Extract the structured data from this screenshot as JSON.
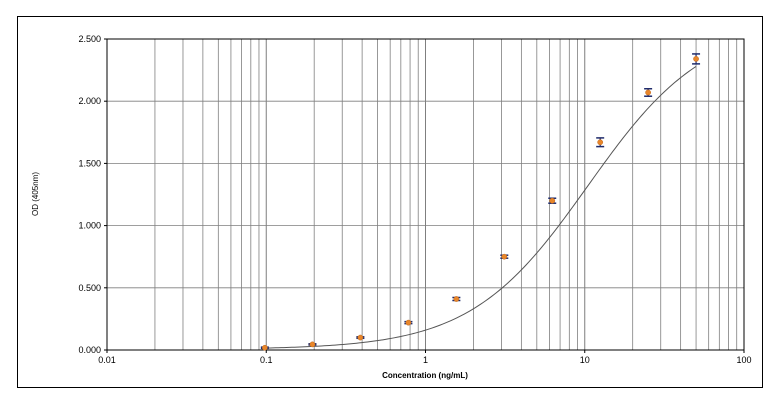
{
  "chart_data": {
    "type": "scatter",
    "title": "",
    "xlabel": "Concentration (ng/mL)",
    "ylabel": "OD (405nm)",
    "x_scale": "log",
    "xlim": [
      0.01,
      100
    ],
    "ylim": [
      0,
      2.5
    ],
    "grid": true,
    "x_ticks": [
      {
        "value": 0.01,
        "label": "0.01"
      },
      {
        "value": 0.1,
        "label": "0.1"
      },
      {
        "value": 1,
        "label": "1"
      },
      {
        "value": 10,
        "label": "10"
      },
      {
        "value": 100,
        "label": "100"
      }
    ],
    "y_ticks": [
      {
        "value": 0,
        "label": "0.000"
      },
      {
        "value": 0.5,
        "label": "0.500"
      },
      {
        "value": 1.0,
        "label": "1.000"
      },
      {
        "value": 1.5,
        "label": "1.500"
      },
      {
        "value": 2.0,
        "label": "2.000"
      },
      {
        "value": 2.5,
        "label": "2.500"
      }
    ],
    "series": [
      {
        "x": [
          0.098,
          0.195,
          0.39,
          0.781,
          1.5625,
          3.125,
          6.25,
          12.5,
          25,
          50
        ],
        "y": [
          0.018,
          0.045,
          0.1,
          0.22,
          0.41,
          0.75,
          1.2,
          1.67,
          2.07,
          2.34
        ],
        "y_error": [
          0.005,
          0.005,
          0.006,
          0.008,
          0.012,
          0.012,
          0.02,
          0.035,
          0.03,
          0.04
        ]
      }
    ],
    "fit_curve": {
      "type": "4PL",
      "bottom": 0.005,
      "top": 2.64,
      "ec50": 10.5,
      "hill": 1.18
    },
    "colors": {
      "marker": "#e8862a",
      "error_bar": "#1f2b6b",
      "curve": "#555555",
      "grid": "#7f7f7f"
    }
  }
}
